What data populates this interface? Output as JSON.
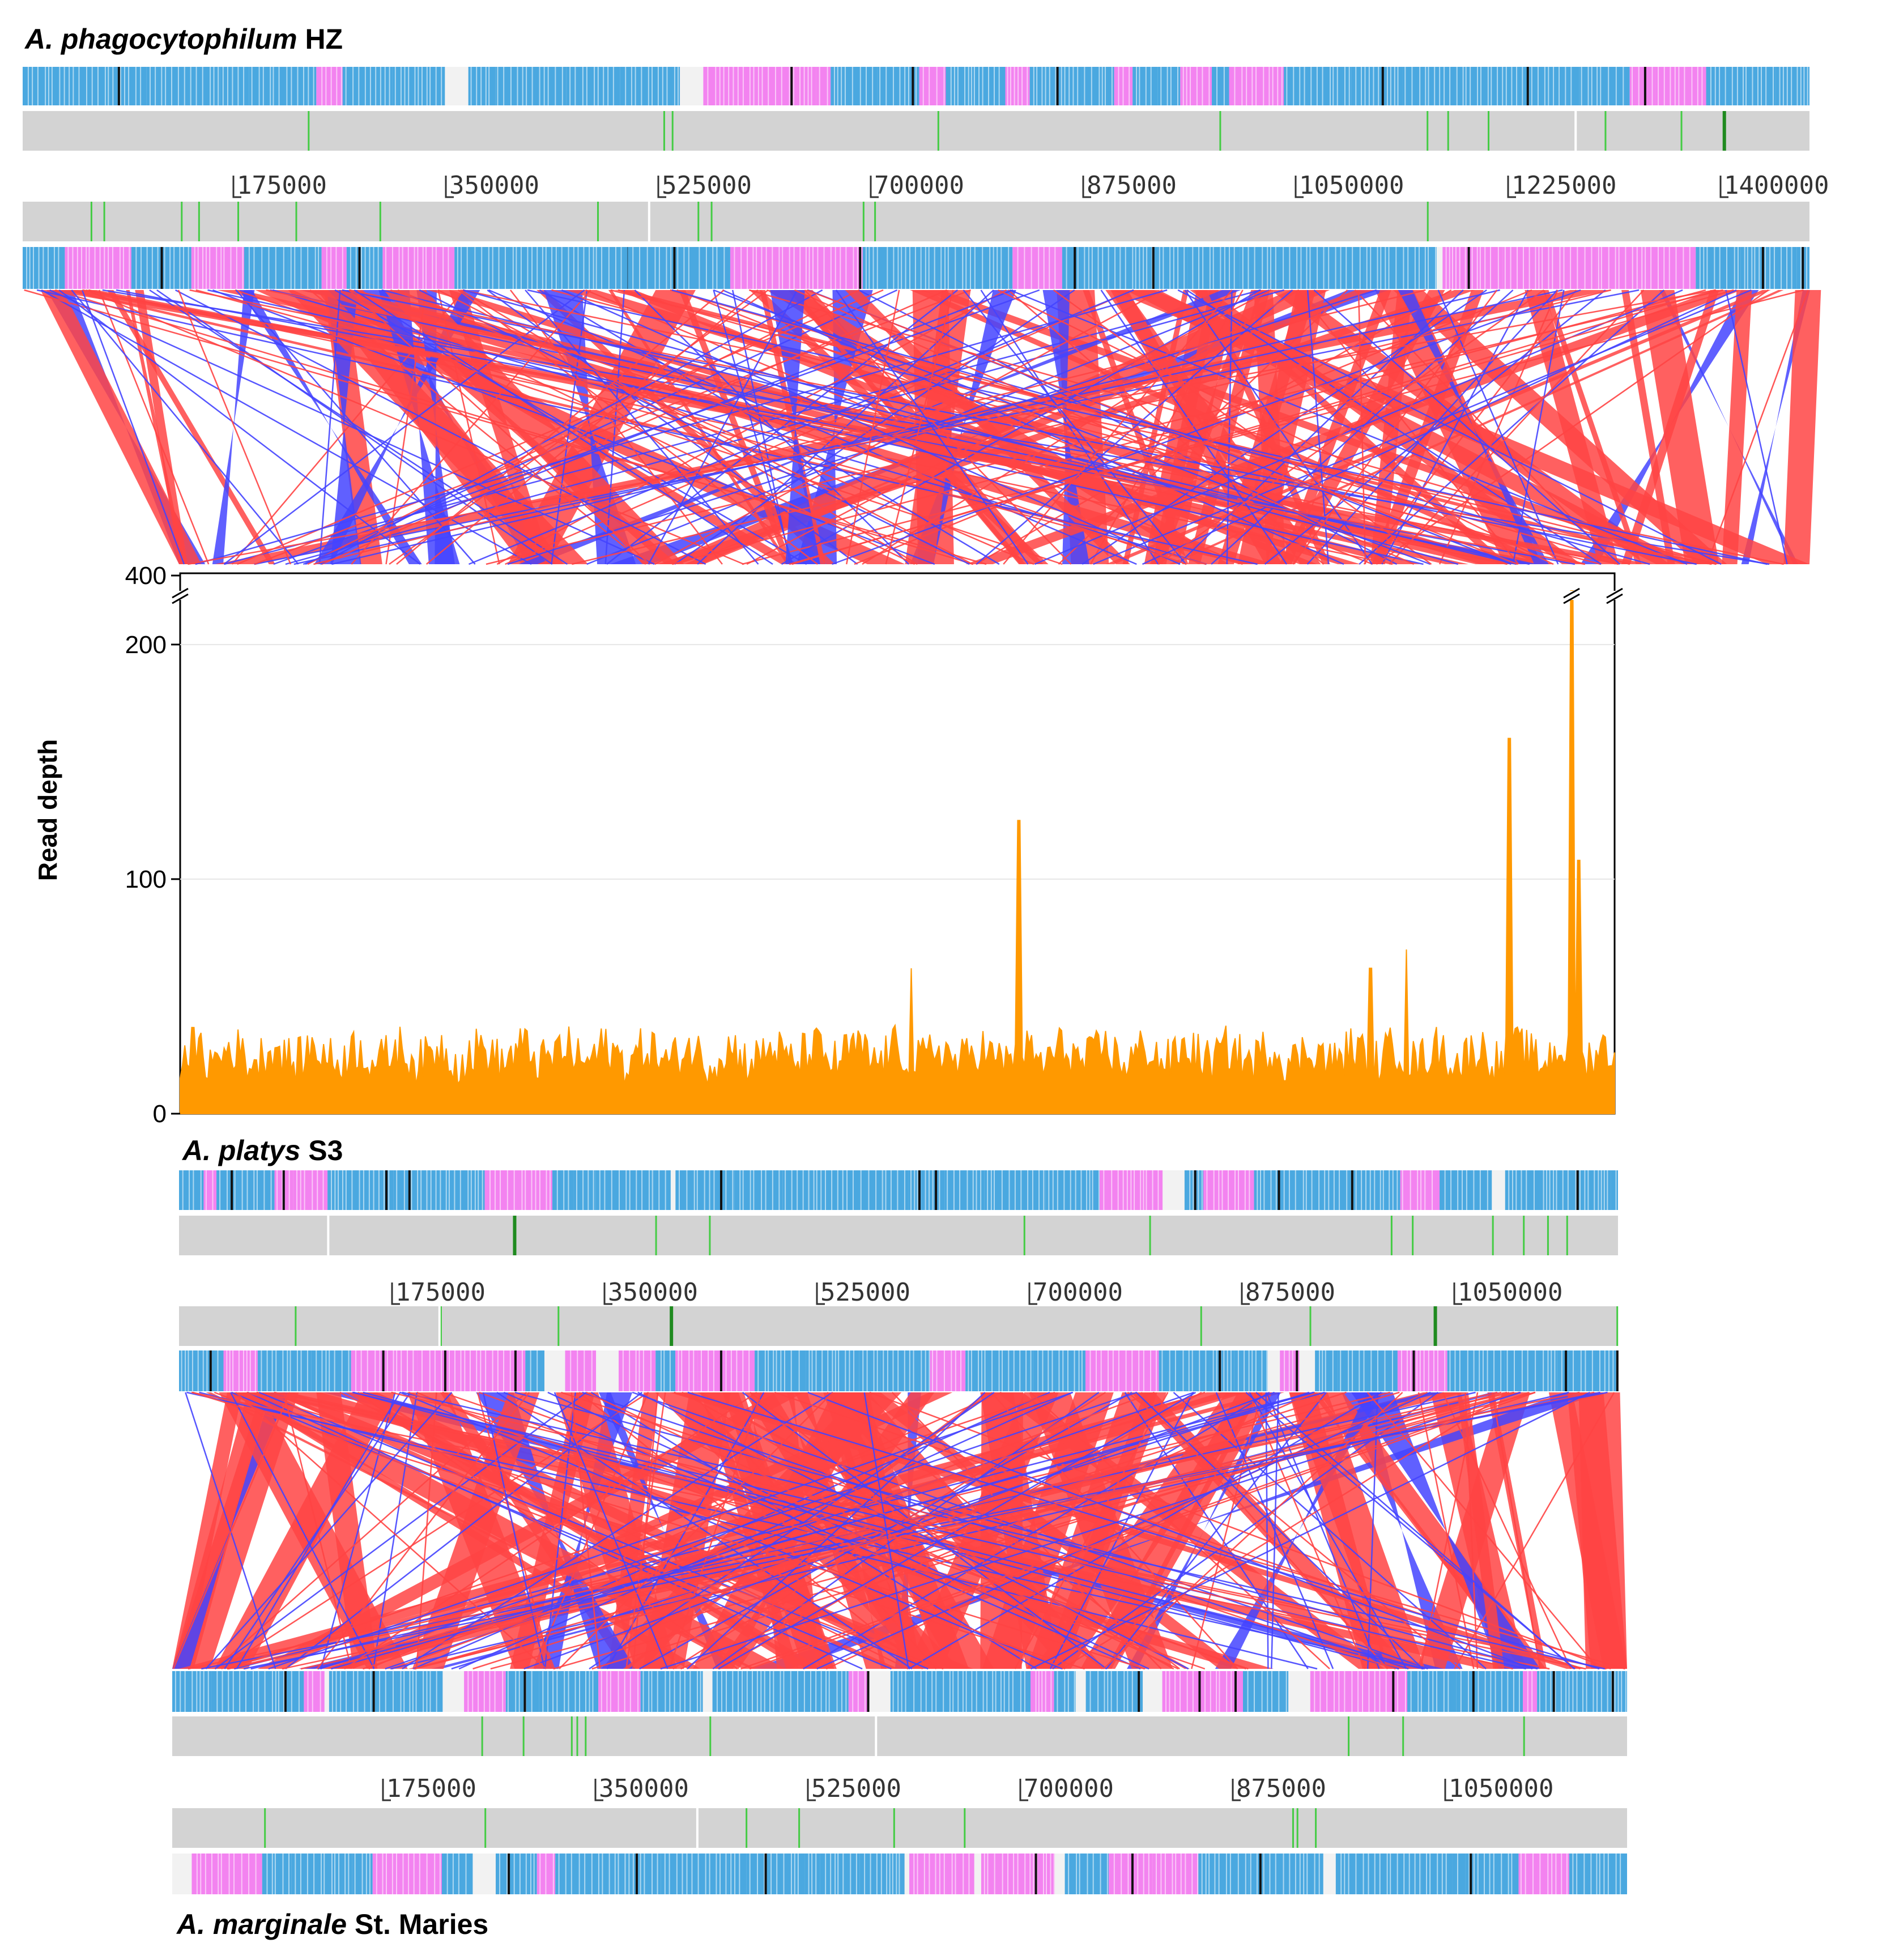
{
  "figure": {
    "genome_top": {
      "name_italic": "A. phagocytophilum",
      "name_plain": " HZ",
      "ticks": [
        "175000",
        "350000",
        "525000",
        "700000",
        "875000",
        "1050000",
        "1225000",
        "1400000"
      ]
    },
    "genome_middle": {
      "name_italic": "A. platys",
      "name_plain": " S3",
      "ticks": [
        "175000",
        "350000",
        "525000",
        "700000",
        "875000",
        "1050000"
      ]
    },
    "genome_bottom": {
      "name_italic": "A. marginale",
      "name_plain": " St. Maries",
      "ticks": [
        "175000",
        "350000",
        "525000",
        "700000",
        "875000",
        "1050000"
      ]
    }
  },
  "chart_data": {
    "type": "area",
    "title": "",
    "xlabel": "",
    "ylabel": "Read depth",
    "ylim": [
      0,
      400
    ],
    "axis_break": [
      220,
      380
    ],
    "yticks": [
      "0",
      "100",
      "200",
      "400"
    ],
    "baseline_range": [
      15,
      35
    ],
    "peaks": [
      {
        "pos": 0.51,
        "value": 62
      },
      {
        "pos": 0.585,
        "value": 125
      },
      {
        "pos": 0.83,
        "value": 62
      },
      {
        "pos": 0.855,
        "value": 70
      },
      {
        "pos": 0.927,
        "value": 160
      },
      {
        "pos": 0.97,
        "value": 385
      },
      {
        "pos": 0.975,
        "value": 108
      }
    ]
  },
  "colors": {
    "forward_match": "#ff4444",
    "reverse_match": "#4444ff",
    "depth_fill": "#ff9900",
    "cds_blue": "#4aa8e0",
    "cds_pink": "#f383f0",
    "cds_black": "#111111",
    "feature_green": "#44cc44",
    "track_grey": "#d3d3d3"
  }
}
